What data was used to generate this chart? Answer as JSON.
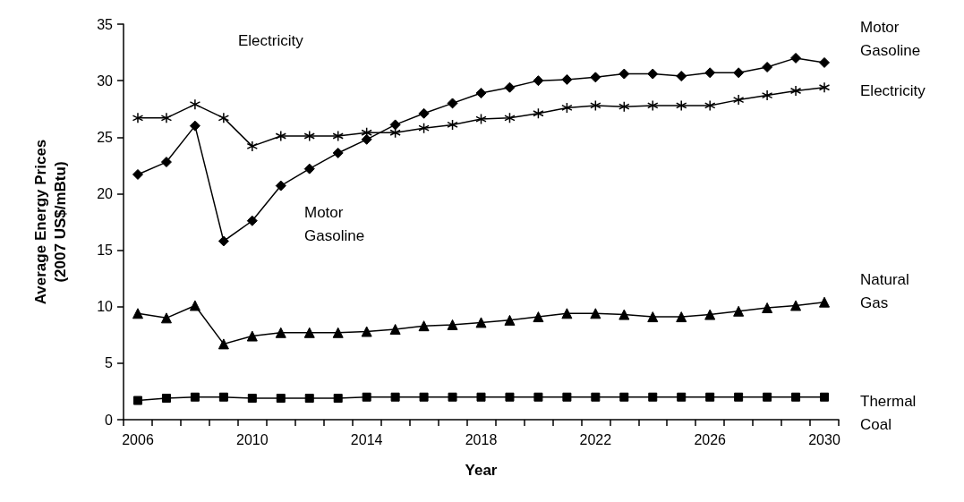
{
  "chart_data": {
    "type": "line",
    "xlabel": "Year",
    "ylabel": "Average Energy Prices\n(2007 US$/mBtu)",
    "categories": [
      "2006",
      null,
      null,
      null,
      "2010",
      null,
      null,
      null,
      "2014",
      null,
      null,
      null,
      "2018",
      null,
      null,
      null,
      "2022",
      null,
      null,
      null,
      "2026",
      null,
      null,
      null,
      "2030"
    ],
    "series": [
      {
        "name": "Motor Gasoline",
        "color": "#000000",
        "marker": "diamond",
        "values": [
          21.7,
          22.8,
          26.0,
          15.8,
          17.6,
          20.7,
          22.2,
          23.6,
          24.8,
          26.1,
          27.1,
          28.0,
          28.9,
          29.4,
          30.0,
          30.1,
          30.3,
          30.6,
          30.6,
          30.4,
          30.7,
          30.7,
          31.2,
          32.0,
          31.6
        ]
      },
      {
        "name": "Electricity",
        "color": "#000000",
        "marker": "cross",
        "values": [
          26.7,
          26.7,
          27.9,
          26.7,
          24.2,
          25.1,
          25.1,
          25.1,
          25.4,
          25.4,
          25.8,
          26.1,
          26.6,
          26.7,
          27.1,
          27.6,
          27.8,
          27.7,
          27.8,
          27.8,
          27.8,
          28.3,
          28.7,
          29.1,
          29.4
        ]
      },
      {
        "name": "Natural Gas",
        "color": "#000000",
        "marker": "triangle",
        "values": [
          9.4,
          9.0,
          10.1,
          6.7,
          7.4,
          7.7,
          7.7,
          7.7,
          7.8,
          8.0,
          8.3,
          8.4,
          8.6,
          8.8,
          9.1,
          9.4,
          9.4,
          9.3,
          9.1,
          9.1,
          9.3,
          9.6,
          9.9,
          10.1,
          10.4
        ]
      },
      {
        "name": "Thermal Coal",
        "color": "#000000",
        "marker": "square",
        "values": [
          1.7,
          1.9,
          2.0,
          2.0,
          1.9,
          1.9,
          1.9,
          1.9,
          2.0,
          2.0,
          2.0,
          2.0,
          2.0,
          2.0,
          2.0,
          2.0,
          2.0,
          2.0,
          2.0,
          2.0,
          2.0,
          2.0,
          2.0,
          2.0,
          2.0
        ]
      }
    ],
    "annotations": [
      "Electricity",
      "Motor\nGasoline"
    ],
    "ylim": [
      0,
      35
    ],
    "yticks": [
      0,
      5,
      10,
      15,
      20,
      25,
      30,
      35
    ],
    "grid": false,
    "legend": false,
    "line_style": "solid"
  }
}
